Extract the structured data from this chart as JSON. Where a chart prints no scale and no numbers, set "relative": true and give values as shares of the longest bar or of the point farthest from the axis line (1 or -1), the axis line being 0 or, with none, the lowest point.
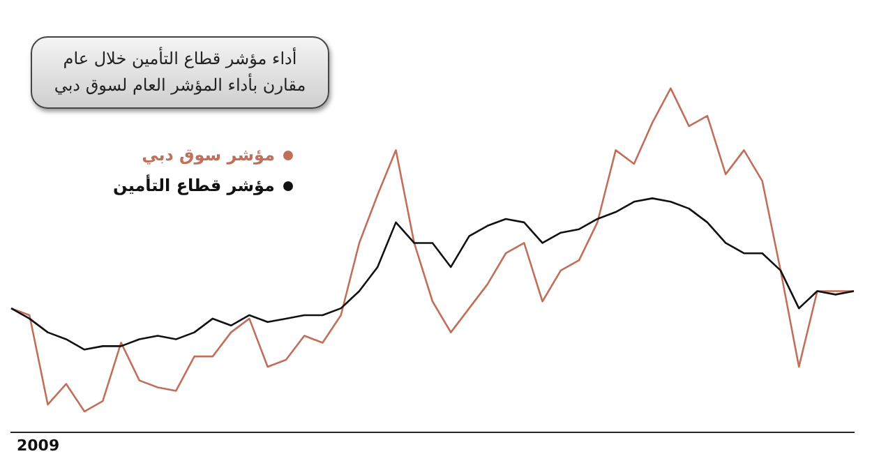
{
  "chart_data": {
    "type": "line",
    "title": "أداء مؤشر قطاع التأمين خلال عام مقارن بأداء المؤشر العام لسوق دبي",
    "relative": true,
    "legend": "top left",
    "grid": false,
    "annotations": [
      "2009"
    ],
    "categories": [
      null,
      null,
      null,
      null,
      null,
      null,
      null,
      null,
      null,
      null,
      null,
      null,
      null,
      null,
      null,
      null,
      null,
      null,
      null,
      null,
      null,
      null,
      null,
      null,
      null,
      null,
      null,
      null,
      null,
      null,
      null,
      null,
      null,
      null,
      null,
      null,
      null,
      null,
      null,
      null,
      null,
      null,
      null,
      null,
      null,
      null,
      null
    ],
    "series": [
      {
        "name": "مؤشر سوق دبي",
        "color": "#c0705a",
        "values": [
          0.36,
          0.34,
          0.08,
          0.14,
          0.06,
          0.09,
          0.26,
          0.15,
          0.13,
          0.12,
          0.22,
          0.22,
          0.29,
          0.33,
          0.19,
          0.21,
          0.28,
          0.26,
          0.34,
          0.55,
          0.69,
          0.82,
          0.55,
          0.38,
          0.29,
          0.36,
          0.43,
          0.52,
          0.55,
          0.38,
          0.47,
          0.5,
          0.61,
          0.82,
          0.78,
          0.9,
          1.0,
          0.89,
          0.92,
          0.75,
          0.82,
          0.73,
          0.47,
          0.19,
          0.41,
          0.41,
          0.41
        ]
      },
      {
        "name": "مؤشر قطاع التأمين",
        "color": "#111111",
        "values": [
          0.36,
          0.33,
          0.29,
          0.27,
          0.24,
          0.25,
          0.25,
          0.27,
          0.28,
          0.27,
          0.29,
          0.33,
          0.31,
          0.34,
          0.32,
          0.33,
          0.34,
          0.34,
          0.36,
          0.41,
          0.48,
          0.61,
          0.55,
          0.55,
          0.48,
          0.57,
          0.6,
          0.62,
          0.61,
          0.55,
          0.58,
          0.59,
          0.62,
          0.64,
          0.67,
          0.68,
          0.67,
          0.65,
          0.61,
          0.55,
          0.52,
          0.52,
          0.47,
          0.36,
          0.41,
          0.4,
          0.41
        ]
      }
    ]
  }
}
